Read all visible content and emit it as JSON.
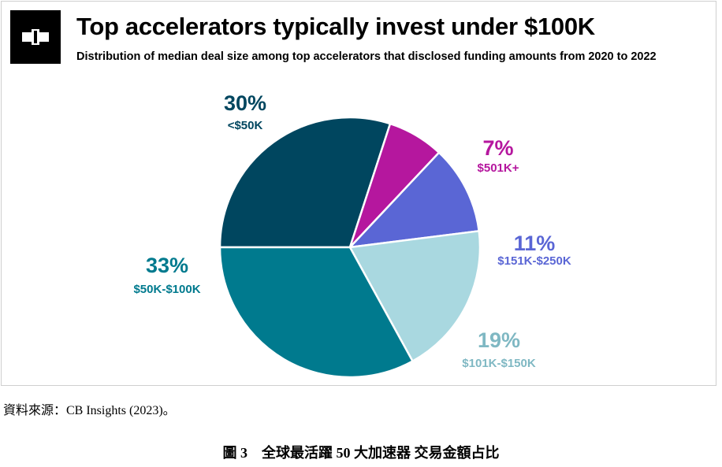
{
  "colors": {
    "lt_50k": "#00465F",
    "k50_100k": "#007A8E",
    "k101_150k": "#A9D8E0",
    "k151_250k": "#5A66D5",
    "k501_plus": "#B5179E",
    "lt_50k_label": "#00465F",
    "k50_100k_label": "#007A8E",
    "k101_150k_label": "#7FB8C3",
    "k151_250k_label": "#5A66D5",
    "k501_plus_label": "#B5179E"
  },
  "logo": {
    "icon": "cb-insights-logo-icon"
  },
  "chart_data": {
    "type": "pie",
    "title": "Top accelerators typically invest under $100K",
    "subtitle": "Distribution of median deal size among top accelerators that disclosed funding amounts from 2020 to 2022",
    "slices": [
      {
        "label": "<$50K",
        "value": 30,
        "display": "30%",
        "color": "#00465F"
      },
      {
        "label": "$501K+",
        "value": 7,
        "display": "7%",
        "color": "#B5179E"
      },
      {
        "label": "$151K-$250K",
        "value": 11,
        "display": "11%",
        "color": "#5A66D5"
      },
      {
        "label": "$101K-$150K",
        "value": 19,
        "display": "19%",
        "color": "#A9D8E0"
      },
      {
        "label": "$50K-$100K",
        "value": 33,
        "display": "33%",
        "color": "#007A8E"
      }
    ]
  },
  "source_note": "資料來源：CB Insights (2023)。",
  "figure_caption": "圖 3　全球最活躍 50 大加速器  交易金額占比"
}
